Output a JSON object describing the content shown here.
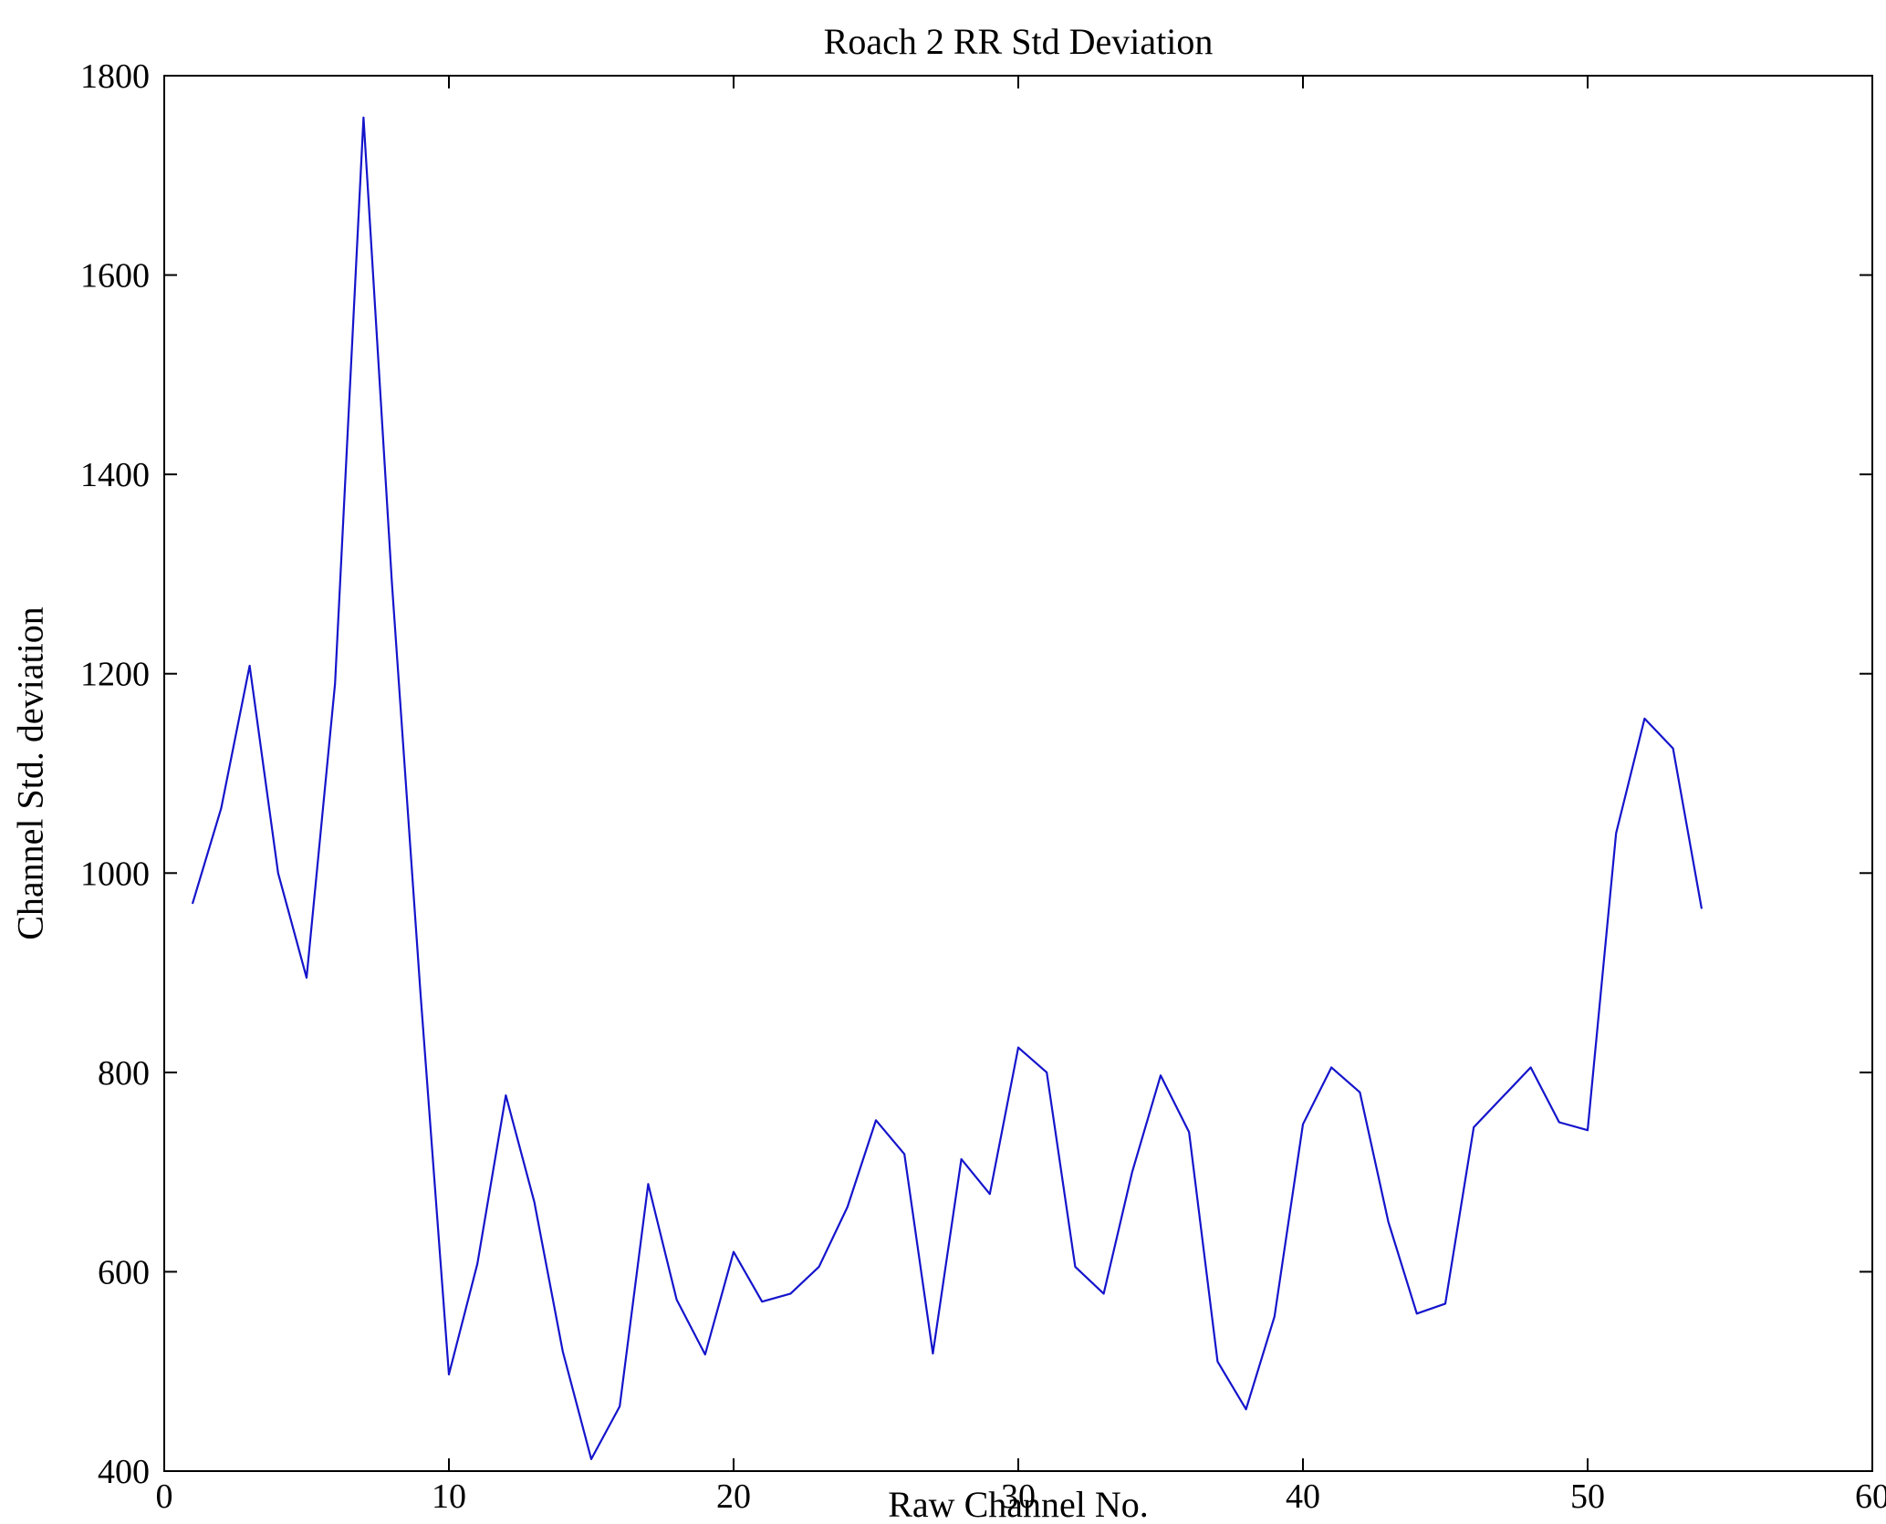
{
  "chart": {
    "title": "Roach 2 RR Std Deviation",
    "xlabel": "Raw Channel No.",
    "ylabel": "Channel Std. deviation"
  },
  "chart_data": {
    "type": "line",
    "title": "Roach 2 RR Std Deviation",
    "xlabel": "Raw Channel No.",
    "ylabel": "Channel Std. deviation",
    "xlim": [
      0,
      60
    ],
    "ylim": [
      400,
      1800
    ],
    "xticks": [
      0,
      10,
      20,
      30,
      40,
      50,
      60
    ],
    "yticks": [
      400,
      600,
      800,
      1000,
      1200,
      1400,
      1600,
      1800
    ],
    "grid": false,
    "legend": "none",
    "line_color": "#1414CC",
    "axes_color": "#000000",
    "series_name": "Channel Std. deviation",
    "x": [
      1,
      2,
      3,
      4,
      5,
      6,
      7,
      8,
      9,
      10,
      11,
      12,
      13,
      14,
      15,
      16,
      17,
      18,
      19,
      20,
      21,
      22,
      23,
      24,
      25,
      26,
      27,
      28,
      29,
      30,
      31,
      32,
      33,
      34,
      35,
      36,
      37,
      38,
      39,
      40,
      41,
      42,
      43,
      44,
      45,
      46,
      47,
      48,
      49,
      50,
      51,
      52,
      53,
      54
    ],
    "y": [
      970,
      1065,
      1208,
      1000,
      895,
      1190,
      1758,
      1290,
      880,
      497,
      608,
      777,
      670,
      520,
      412,
      465,
      688,
      572,
      517,
      620,
      570,
      578,
      605,
      665,
      752,
      718,
      518,
      713,
      678,
      825,
      800,
      605,
      578,
      700,
      797,
      740,
      510,
      462,
      555,
      748,
      805,
      780,
      650,
      558,
      568,
      745,
      775,
      805,
      750,
      742,
      1040,
      1155,
      1125,
      965
    ]
  }
}
